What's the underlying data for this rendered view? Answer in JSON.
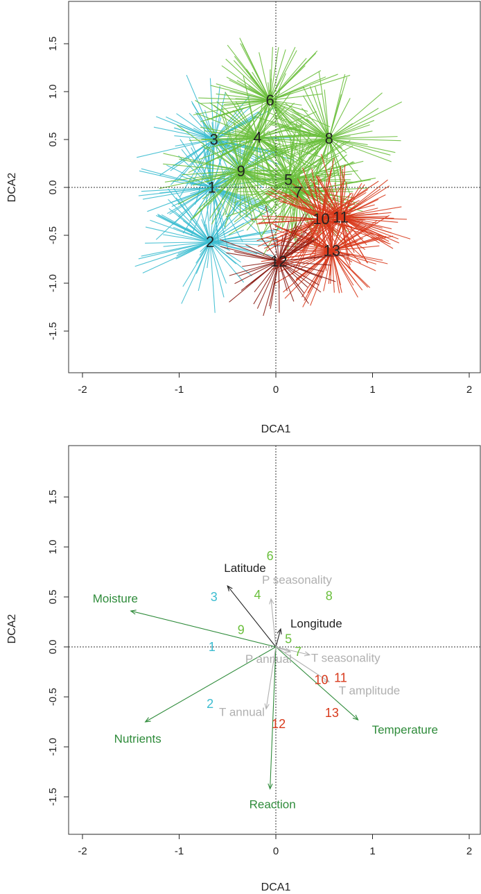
{
  "chart_data": [
    {
      "type": "scatter",
      "title": "",
      "xlabel": "DCA1",
      "ylabel": "DCA2",
      "xlim": [
        -2,
        2
      ],
      "ylim": [
        -1.85,
        1.85
      ],
      "xticks": [
        "-2",
        "-1",
        "0",
        "1",
        "2"
      ],
      "yticks": [
        "-1.5",
        "-1.0",
        "-0.5",
        "0.0",
        "0.5",
        "1.0",
        "1.5"
      ],
      "zero_lines": true,
      "centroids": [
        {
          "label": "1",
          "x": -0.66,
          "y": 0.0,
          "group": "cyan"
        },
        {
          "label": "2",
          "x": -0.68,
          "y": -0.57,
          "group": "cyan"
        },
        {
          "label": "3",
          "x": -0.64,
          "y": 0.5,
          "group": "cyan"
        },
        {
          "label": "4",
          "x": -0.19,
          "y": 0.52,
          "group": "green"
        },
        {
          "label": "5",
          "x": 0.13,
          "y": 0.08,
          "group": "green"
        },
        {
          "label": "6",
          "x": -0.06,
          "y": 0.91,
          "group": "green"
        },
        {
          "label": "7",
          "x": 0.23,
          "y": -0.05,
          "group": "green"
        },
        {
          "label": "8",
          "x": 0.55,
          "y": 0.51,
          "group": "green"
        },
        {
          "label": "9",
          "x": -0.36,
          "y": 0.17,
          "group": "green"
        },
        {
          "label": "10",
          "x": 0.47,
          "y": -0.33,
          "group": "red"
        },
        {
          "label": "11",
          "x": 0.67,
          "y": -0.31,
          "group": "red"
        },
        {
          "label": "12",
          "x": 0.03,
          "y": -0.77,
          "group": "darkred"
        },
        {
          "label": "13",
          "x": 0.58,
          "y": -0.66,
          "group": "red"
        }
      ],
      "groups": {
        "cyan": "#3bbcd0",
        "green": "#6abf3c",
        "red": "#d8391b",
        "darkred": "#8a1d15"
      }
    },
    {
      "type": "scatter",
      "title": "",
      "xlabel": "DCA1",
      "ylabel": "DCA2",
      "xlim": [
        -2,
        2
      ],
      "ylim": [
        -1.85,
        1.85
      ],
      "xticks": [
        "-2",
        "-1",
        "0",
        "1",
        "2"
      ],
      "yticks": [
        "-1.5",
        "-1.0",
        "-0.5",
        "0.0",
        "0.5",
        "1.0",
        "1.5"
      ],
      "zero_lines": true,
      "centroids": [
        {
          "label": "1",
          "x": -0.66,
          "y": 0.0,
          "color": "#3bbcd0"
        },
        {
          "label": "2",
          "x": -0.68,
          "y": -0.57,
          "color": "#3bbcd0"
        },
        {
          "label": "3",
          "x": -0.64,
          "y": 0.5,
          "color": "#3bbcd0"
        },
        {
          "label": "4",
          "x": -0.19,
          "y": 0.52,
          "color": "#6abf3c"
        },
        {
          "label": "5",
          "x": 0.13,
          "y": 0.08,
          "color": "#6abf3c"
        },
        {
          "label": "6",
          "x": -0.06,
          "y": 0.91,
          "color": "#6abf3c"
        },
        {
          "label": "7",
          "x": 0.23,
          "y": -0.05,
          "color": "#6abf3c"
        },
        {
          "label": "8",
          "x": 0.55,
          "y": 0.51,
          "color": "#6abf3c"
        },
        {
          "label": "9",
          "x": -0.36,
          "y": 0.17,
          "color": "#6abf3c"
        },
        {
          "label": "10",
          "x": 0.47,
          "y": -0.33,
          "color": "#d8391b"
        },
        {
          "label": "11",
          "x": 0.67,
          "y": -0.31,
          "color": "#d8391b"
        },
        {
          "label": "12",
          "x": 0.03,
          "y": -0.77,
          "color": "#d8391b"
        },
        {
          "label": "13",
          "x": 0.58,
          "y": -0.66,
          "color": "#d8391b"
        }
      ],
      "vectors": [
        {
          "name": "Latitude",
          "x": -0.5,
          "y": 0.61,
          "color": "#222222"
        },
        {
          "name": "Longitude",
          "x": 0.05,
          "y": 0.18,
          "color": "#222222"
        },
        {
          "name": "Moisture",
          "x": -1.5,
          "y": 0.36,
          "color": "#2e8b3a"
        },
        {
          "name": "Nutrients",
          "x": -1.35,
          "y": -0.75,
          "color": "#2e8b3a"
        },
        {
          "name": "Reaction",
          "x": -0.06,
          "y": -1.42,
          "color": "#2e8b3a"
        },
        {
          "name": "Temperature",
          "x": 0.85,
          "y": -0.73,
          "color": "#2e8b3a"
        },
        {
          "name": "P seasonality",
          "x": -0.05,
          "y": 0.48,
          "color": "#b0b0b0"
        },
        {
          "name": "P annual",
          "x": 0.15,
          "y": -0.05,
          "color": "#b0b0b0"
        },
        {
          "name": "T seasonality",
          "x": 0.35,
          "y": -0.08,
          "color": "#b0b0b0"
        },
        {
          "name": "T amplitude",
          "x": 0.55,
          "y": -0.35,
          "color": "#b0b0b0"
        },
        {
          "name": "T annual",
          "x": -0.1,
          "y": -0.62,
          "color": "#b0b0b0"
        }
      ]
    }
  ]
}
